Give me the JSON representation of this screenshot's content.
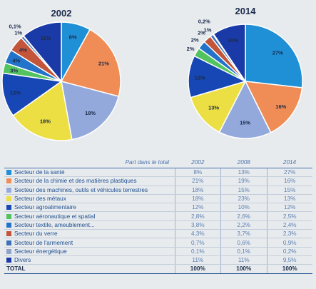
{
  "chart_data": [
    {
      "type": "pie",
      "title": "2002",
      "categories": [
        "Secteur de la santé",
        "Secteur de la chimie et des matières plastiques",
        "Secteur des machines, outils et véhicules terrestres",
        "Secteur des métaux",
        "Secteur agroalimentaire",
        "Secteur aéronautique et spatial",
        "Secteur textile, ameublement...",
        "Secteur du verre",
        "Secteur de l'armement",
        "Secteur énergétique",
        "Divers"
      ],
      "values": [
        8,
        21,
        18,
        18,
        12,
        2.8,
        3.8,
        4.3,
        0.7,
        0.1,
        11
      ],
      "slice_labels": [
        "8%",
        "21%",
        "18%",
        "18%",
        "12%",
        "3%",
        "4%",
        "4%",
        "1%",
        "0,1%",
        "11%"
      ]
    },
    {
      "type": "pie",
      "title": "2014",
      "categories": [
        "Secteur de la santé",
        "Secteur de la chimie et des matières plastiques",
        "Secteur des machines, outils et véhicules terrestres",
        "Secteur des métaux",
        "Secteur agroalimentaire",
        "Secteur aéronautique et spatial",
        "Secteur textile, ameublement...",
        "Secteur du verre",
        "Secteur de l'armement",
        "Secteur énergétique",
        "Divers"
      ],
      "values": [
        27,
        16,
        15,
        13,
        12,
        2.5,
        2.4,
        2.3,
        0.9,
        0.2,
        9.5
      ],
      "slice_labels": [
        "27%",
        "16%",
        "15%",
        "13%",
        "12%",
        "2%",
        "2%",
        "2%",
        "1%",
        "0,2%",
        "10%"
      ]
    },
    {
      "type": "table",
      "header": {
        "label": "Part dans le total",
        "years": [
          "2002",
          "2008",
          "2014"
        ]
      },
      "rows": [
        {
          "label": "Secteur de la santé",
          "values": [
            "8%",
            "13%",
            "27%"
          ],
          "color": "#1f8fd6"
        },
        {
          "label": "Secteur de la chimie et des matières plastiques",
          "values": [
            "21%",
            "19%",
            "16%"
          ],
          "color": "#f08c55"
        },
        {
          "label": "Secteur des machines, outils et véhicules terrestres",
          "values": [
            "18%",
            "15%",
            "15%"
          ],
          "color": "#93a9dc"
        },
        {
          "label": "Secteur des métaux",
          "values": [
            "18%",
            "23%",
            "13%"
          ],
          "color": "#ecdf44"
        },
        {
          "label": "Secteur agroalimentaire",
          "values": [
            "12%",
            "10%",
            "12%"
          ],
          "color": "#1747b5"
        },
        {
          "label": "Secteur aéronautique et spatial",
          "values": [
            "2,8%",
            "2,6%",
            "2,5%"
          ],
          "color": "#52c35e"
        },
        {
          "label": "Secteur textile, ameublement...",
          "values": [
            "3,8%",
            "2,2%",
            "2,4%"
          ],
          "color": "#2273c9"
        },
        {
          "label": "Secteur du verre",
          "values": [
            "4,3%",
            "3,7%",
            "2,3%"
          ],
          "color": "#c2553a"
        },
        {
          "label": "Secteur de l'armement",
          "values": [
            "0,7%",
            "0,6%",
            "0,9%"
          ],
          "color": "#3e72b8"
        },
        {
          "label": "Secteur énergétique",
          "values": [
            "0,1%",
            "0,1%",
            "0,2%"
          ],
          "color": "#8ea2cc"
        },
        {
          "label": "Divers",
          "values": [
            "11%",
            "11%",
            "9,5%"
          ],
          "color": "#1a3aa8"
        }
      ],
      "total": {
        "label": "TOTAL",
        "values": [
          "100%",
          "100%",
          "100%"
        ]
      }
    }
  ]
}
